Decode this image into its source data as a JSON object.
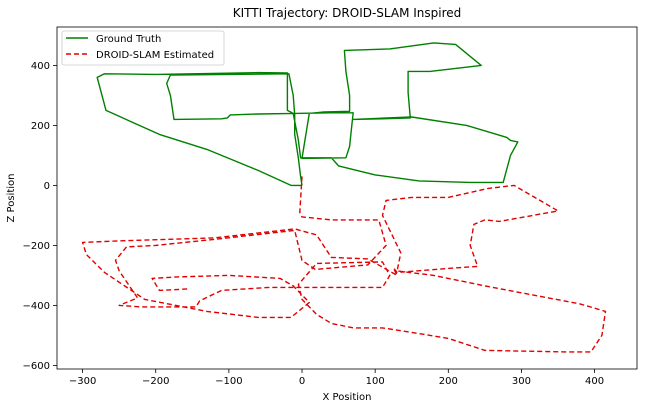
{
  "chart_data": {
    "type": "line",
    "title": "KITTI Trajectory: DROID-SLAM Inspired",
    "xlabel": "X Position",
    "ylabel": "Z Position",
    "xlim": [
      -335,
      458
    ],
    "ylim": [
      -612,
      528
    ],
    "xticks": [
      -300,
      -200,
      -100,
      0,
      100,
      200,
      300,
      400
    ],
    "yticks": [
      -600,
      -400,
      -200,
      0,
      200,
      400
    ],
    "grid": false,
    "legend_position": "top-left",
    "series": [
      {
        "name": "Ground Truth",
        "color": "#008000",
        "style": "solid",
        "points": [
          [
            0,
            0
          ],
          [
            -2,
            30
          ],
          [
            -5,
            90
          ],
          [
            -10,
            170
          ],
          [
            -10,
            235
          ],
          [
            -12,
            300
          ],
          [
            -18,
            372
          ],
          [
            -100,
            370
          ],
          [
            -180,
            368
          ],
          [
            -185,
            340
          ],
          [
            -180,
            300
          ],
          [
            -175,
            220
          ],
          [
            -110,
            222
          ],
          [
            -102,
            225
          ],
          [
            -98,
            235
          ],
          [
            -60,
            238
          ],
          [
            -10,
            240
          ],
          [
            40,
            242
          ],
          [
            70,
            242
          ],
          [
            68,
            200
          ],
          [
            65,
            130
          ],
          [
            60,
            92
          ],
          [
            0,
            90
          ],
          [
            10,
            240
          ],
          [
            30,
            245
          ],
          [
            65,
            247
          ],
          [
            65,
            300
          ],
          [
            60,
            380
          ],
          [
            58,
            450
          ],
          [
            120,
            455
          ],
          [
            180,
            475
          ],
          [
            210,
            470
          ],
          [
            245,
            400
          ],
          [
            175,
            380
          ],
          [
            145,
            380
          ],
          [
            145,
            310
          ],
          [
            148,
            225
          ],
          [
            110,
            222
          ],
          [
            70,
            220
          ],
          [
            150,
            228
          ],
          [
            225,
            200
          ],
          [
            280,
            160
          ],
          [
            285,
            150
          ],
          [
            295,
            145
          ],
          [
            285,
            100
          ],
          [
            275,
            10
          ],
          [
            230,
            10
          ],
          [
            160,
            15
          ],
          [
            100,
            35
          ],
          [
            50,
            65
          ],
          [
            40,
            92
          ],
          [
            -2,
            92
          ],
          [
            -5,
            150
          ],
          [
            -12,
            240
          ],
          [
            -20,
            250
          ],
          [
            -20,
            352
          ],
          [
            -20,
            375
          ],
          [
            -60,
            376
          ],
          [
            -200,
            370
          ],
          [
            -270,
            372
          ],
          [
            -280,
            360
          ],
          [
            -268,
            250
          ],
          [
            -195,
            170
          ],
          [
            -130,
            120
          ],
          [
            -60,
            50
          ],
          [
            -15,
            0
          ],
          [
            0,
            0
          ]
        ]
      },
      {
        "name": "DROID-SLAM Estimated",
        "color": "#e00000",
        "style": "dashed",
        "points": [
          [
            0,
            30
          ],
          [
            -3,
            -90
          ],
          [
            0,
            -105
          ],
          [
            40,
            -115
          ],
          [
            105,
            -115
          ],
          [
            115,
            -200
          ],
          [
            90,
            -265
          ],
          [
            18,
            -280
          ],
          [
            0,
            -250
          ],
          [
            -10,
            -150
          ],
          [
            -120,
            -180
          ],
          [
            -200,
            -200
          ],
          [
            -240,
            -205
          ],
          [
            -255,
            -250
          ],
          [
            -250,
            -285
          ],
          [
            -225,
            -375
          ],
          [
            -250,
            -400
          ],
          [
            -220,
            -405
          ],
          [
            -145,
            -405
          ],
          [
            -140,
            -385
          ],
          [
            -110,
            -350
          ],
          [
            -45,
            -340
          ],
          [
            0,
            -340
          ],
          [
            110,
            -340
          ],
          [
            120,
            -300
          ],
          [
            110,
            -255
          ],
          [
            20,
            -260
          ],
          [
            -5,
            -330
          ],
          [
            0,
            -380
          ],
          [
            20,
            -430
          ],
          [
            40,
            -460
          ],
          [
            70,
            -475
          ],
          [
            110,
            -475
          ],
          [
            150,
            -490
          ],
          [
            200,
            -510
          ],
          [
            250,
            -550
          ],
          [
            360,
            -555
          ],
          [
            395,
            -555
          ],
          [
            410,
            -500
          ],
          [
            415,
            -420
          ],
          [
            380,
            -395
          ],
          [
            250,
            -335
          ],
          [
            180,
            -300
          ],
          [
            130,
            -285
          ],
          [
            135,
            -225
          ],
          [
            110,
            -100
          ],
          [
            115,
            -50
          ],
          [
            150,
            -40
          ],
          [
            200,
            -40
          ],
          [
            255,
            -10
          ],
          [
            290,
            0
          ],
          [
            350,
            -85
          ],
          [
            270,
            -120
          ],
          [
            250,
            -115
          ],
          [
            235,
            -130
          ],
          [
            230,
            -200
          ],
          [
            240,
            -270
          ],
          [
            210,
            -275
          ],
          [
            130,
            -290
          ],
          [
            125,
            -275
          ],
          [
            130,
            -300
          ],
          [
            90,
            -245
          ],
          [
            40,
            -240
          ],
          [
            20,
            -165
          ],
          [
            -10,
            -145
          ],
          [
            -120,
            -175
          ],
          [
            -250,
            -185
          ],
          [
            -300,
            -190
          ],
          [
            -295,
            -230
          ],
          [
            -270,
            -290
          ],
          [
            -215,
            -380
          ],
          [
            -130,
            -420
          ],
          [
            -60,
            -440
          ],
          [
            -15,
            -440
          ],
          [
            10,
            -390
          ],
          [
            -12,
            -335
          ],
          [
            -30,
            -310
          ],
          [
            -100,
            -300
          ],
          [
            -170,
            -305
          ],
          [
            -205,
            -310
          ],
          [
            -195,
            -350
          ],
          [
            -155,
            -345
          ]
        ]
      }
    ]
  }
}
